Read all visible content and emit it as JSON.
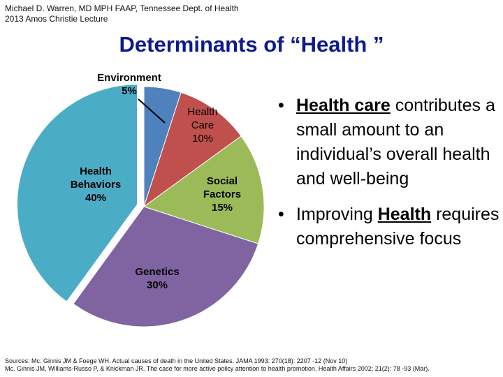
{
  "header": {
    "credit_line1": "Michael D. Warren, MD MPH FAAP, Tennessee Dept. of Health",
    "credit_line2": "2013 Amos Christie Lecture"
  },
  "slide": {
    "title": "Determinants of “Health ”"
  },
  "chart_data": {
    "type": "pie",
    "title": "",
    "slices": [
      {
        "label": "Environment",
        "value": 5,
        "value_label": "5%",
        "color": "#4f81bd"
      },
      {
        "label": "Health Care",
        "value": 10,
        "value_label": "10%",
        "color": "#c0504d"
      },
      {
        "label": "Social Factors",
        "value": 15,
        "value_label": "15%",
        "color": "#9bbb59"
      },
      {
        "label": "Genetics",
        "value": 30,
        "value_label": "30%",
        "color": "#8064a2"
      },
      {
        "label": "Health Behaviors",
        "value": 40,
        "value_label": "40%",
        "color": "#4bacc6"
      }
    ],
    "start_angle_deg": 0,
    "direction": "clockwise",
    "exploded_slice": "Health Behaviors"
  },
  "bullets": [
    {
      "pre": "",
      "emph": "Health care",
      "post": " contributes a small amount to an individual’s overall health and well-being"
    },
    {
      "pre": "Improving ",
      "emph": "Health",
      "post": " requires comprehensive focus"
    }
  ],
  "bullet_symbol": "•",
  "sources": {
    "line1": "Sources: Mc. Ginnis JM & Foege WH. Actual causes of death in the United States. JAMA 1993: 270(18): 2207 -12 (Nov 10)",
    "line2": "Mc. Ginnis JM, Williams-Russo P, & Knickman JR. The case for more active policy attention to health promotion. Health Affairs 2002; 21(2): 78 -93 (Mar)."
  }
}
